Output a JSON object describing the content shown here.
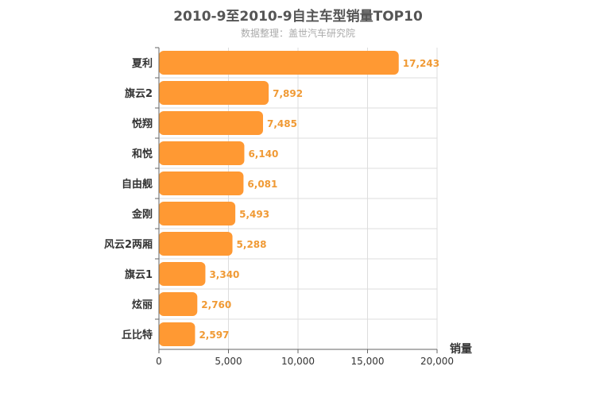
{
  "chart_data": {
    "type": "bar",
    "orientation": "horizontal",
    "title": "2010-9至2010-9自主车型销量TOP10",
    "subtitle": "数据整理：盖世汽车研究院",
    "categories": [
      "夏利",
      "旗云2",
      "悦翔",
      "和悦",
      "自由舰",
      "金刚",
      "风云2两厢",
      "旗云1",
      "炫丽",
      "丘比特"
    ],
    "values": [
      17243,
      7892,
      7485,
      6140,
      6081,
      5493,
      5288,
      3340,
      2760,
      2597
    ],
    "value_labels": [
      "17,243",
      "7,892",
      "7,485",
      "6,140",
      "6,081",
      "5,493",
      "5,288",
      "3,340",
      "2,760",
      "2,597"
    ],
    "xlabel": "销量",
    "xlim": [
      0,
      20000
    ],
    "xticks": [
      0,
      5000,
      10000,
      15000,
      20000
    ],
    "xtick_labels": [
      "0",
      "5,000",
      "10,000",
      "15,000",
      "20,000"
    ],
    "grid": true,
    "bar_color": "#ff9933",
    "label_color": "#f09a35"
  }
}
